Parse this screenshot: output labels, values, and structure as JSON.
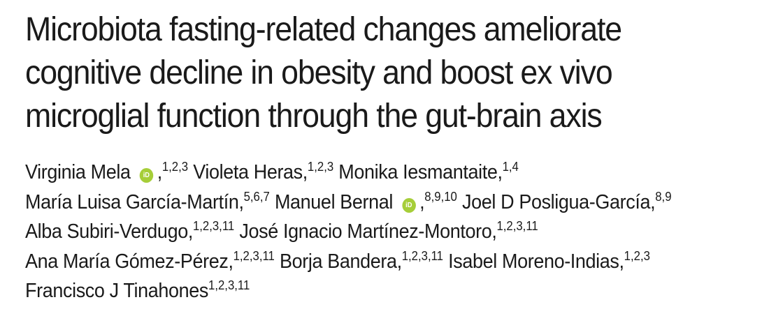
{
  "title": {
    "line1": "Microbiota fasting-related changes ameliorate",
    "line2": "cognitive decline in obesity and boost ex vivo",
    "line3": "microglial function through the gut-brain axis"
  },
  "authors": {
    "a1": {
      "name": "Virginia Mela",
      "aff": "1,2,3",
      "orcid_label": "iD"
    },
    "a2": {
      "name": "Violeta Heras,",
      "aff": "1,2,3"
    },
    "a3": {
      "name": "Monika Iesmantaite,",
      "aff": "1,4"
    },
    "a4": {
      "name": "María Luisa García-Martín,",
      "aff": "5,6,7"
    },
    "a5": {
      "name": "Manuel Bernal",
      "aff": "8,9,10",
      "orcid_label": "iD"
    },
    "a6": {
      "name": "Joel D Posligua-García,",
      "aff": "8,9"
    },
    "a7": {
      "name": "Alba Subiri-Verdugo,",
      "aff": "1,2,3,11"
    },
    "a8": {
      "name": "José Ignacio Martínez-Montoro,",
      "aff": "1,2,3,11"
    },
    "a9": {
      "name": "Ana María Gómez-Pérez,",
      "aff": "1,2,3,11"
    },
    "a10": {
      "name": "Borja Bandera,",
      "aff": "1,2,3,11"
    },
    "a11": {
      "name": "Isabel Moreno-Indias,",
      "aff": "1,2,3"
    },
    "a12": {
      "name": "Francisco J Tinahones",
      "aff": "1,2,3,11"
    }
  },
  "colors": {
    "orcid": "#a6ce39",
    "text": "#1a1a1a"
  }
}
